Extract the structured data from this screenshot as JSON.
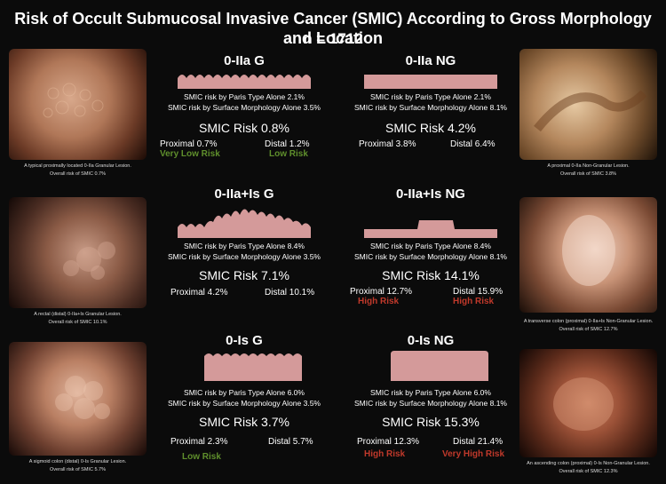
{
  "header": {
    "title": "Risk of Occult Submucosal Invasive Cancer (SMIC) According to Gross Morphology and Location",
    "subtitle": "n = 1712"
  },
  "panels": [
    {
      "title": "0-IIa G",
      "paris": "SMIC risk by Paris Type Alone  2.1%",
      "surface": "SMIC risk by Surface Morphology Alone 3.5%",
      "smic": "SMIC Risk  0.8%",
      "proximal": "Proximal 0.7%",
      "distal": "Distal 1.2%",
      "proximal_tag": "Very Low Risk",
      "distal_tag": "Low Risk",
      "tag_color": "green"
    },
    {
      "title": "0-IIa NG",
      "paris": "SMIC risk by Paris Type Alone  2.1%",
      "surface": "SMIC risk by Surface Morphology Alone 8.1%",
      "smic": "SMIC Risk  4.2%",
      "proximal": "Proximal 3.8%",
      "distal": "Distal 6.4%",
      "proximal_tag": "",
      "distal_tag": "",
      "tag_color": ""
    },
    {
      "title": "0-IIa+Is G",
      "paris": "SMIC risk by Paris Type Alone  8.4%",
      "surface": "SMIC risk by Surface Morphology Alone 3.5%",
      "smic": "SMIC Risk  7.1%",
      "proximal": "Proximal  4.2%",
      "distal": "Distal  10.1%",
      "proximal_tag": "",
      "distal_tag": "",
      "tag_color": ""
    },
    {
      "title": "0-IIa+Is NG",
      "paris": "SMIC risk by Paris Type Alone  8.4%",
      "surface": "SMIC risk by Surface Morphology Alone 8.1%",
      "smic": "SMIC Risk  14.1%",
      "proximal": "Proximal 12.7%",
      "distal": "Distal 15.9%",
      "proximal_tag": "High Risk",
      "distal_tag": "High Risk",
      "tag_color": "red"
    },
    {
      "title": "0-Is G",
      "paris": "SMIC risk by Paris Type Alone  6.0%",
      "surface": "SMIC risk by Surface Morphology Alone 3.5%",
      "smic": "SMIC Risk  3.7%",
      "proximal": "Proximal 2.3%",
      "distal": "Distal 5.7%",
      "proximal_tag": "Low Risk",
      "distal_tag": "",
      "tag_color": "green"
    },
    {
      "title": "0-Is NG",
      "paris": "SMIC risk by Paris Type Alone  6.0%",
      "surface": "SMIC risk by Surface Morphology Alone 8.1%",
      "smic": "SMIC Risk  15.3%",
      "proximal": "Proximal 12.3%",
      "distal": "Distal 21.4%",
      "proximal_tag": "High Risk",
      "distal_tag": "Very High Risk",
      "tag_color": "red"
    }
  ],
  "photos": [
    {
      "caption1": "A typical proximally located 0-IIa Granular Lesion.",
      "caption2": "Overall risk of SMIC 0.7%"
    },
    {
      "caption1": "A proximal 0-IIa Non-Granular Lesion.",
      "caption2": "Overall risk of SMIC 3.8%"
    },
    {
      "caption1": "A rectal (distal) 0-IIa+Is Granular Lesion.",
      "caption2": "Overall risk of SMIC 10.1%"
    },
    {
      "caption1": "A transverse colon (proximal) 0-IIa+Is Non-Granular Lesion.",
      "caption2": "Overall risk of SMIC 12.7%"
    },
    {
      "caption1": "A sigmoid colon (distal) 0-Is Granular Lesion.",
      "caption2": "Overall risk of SMIC 5.7%"
    },
    {
      "caption1": "An ascending colon (proximal) 0-Is Non-Granular Lesion.",
      "caption2": "Overall risk of SMIC 12.3%"
    }
  ],
  "colors": {
    "background": "#0b0b0b",
    "lesion_pink": "#d49a9a",
    "low_risk_green": "#5f8f2c",
    "high_risk_red": "#c0392b"
  }
}
